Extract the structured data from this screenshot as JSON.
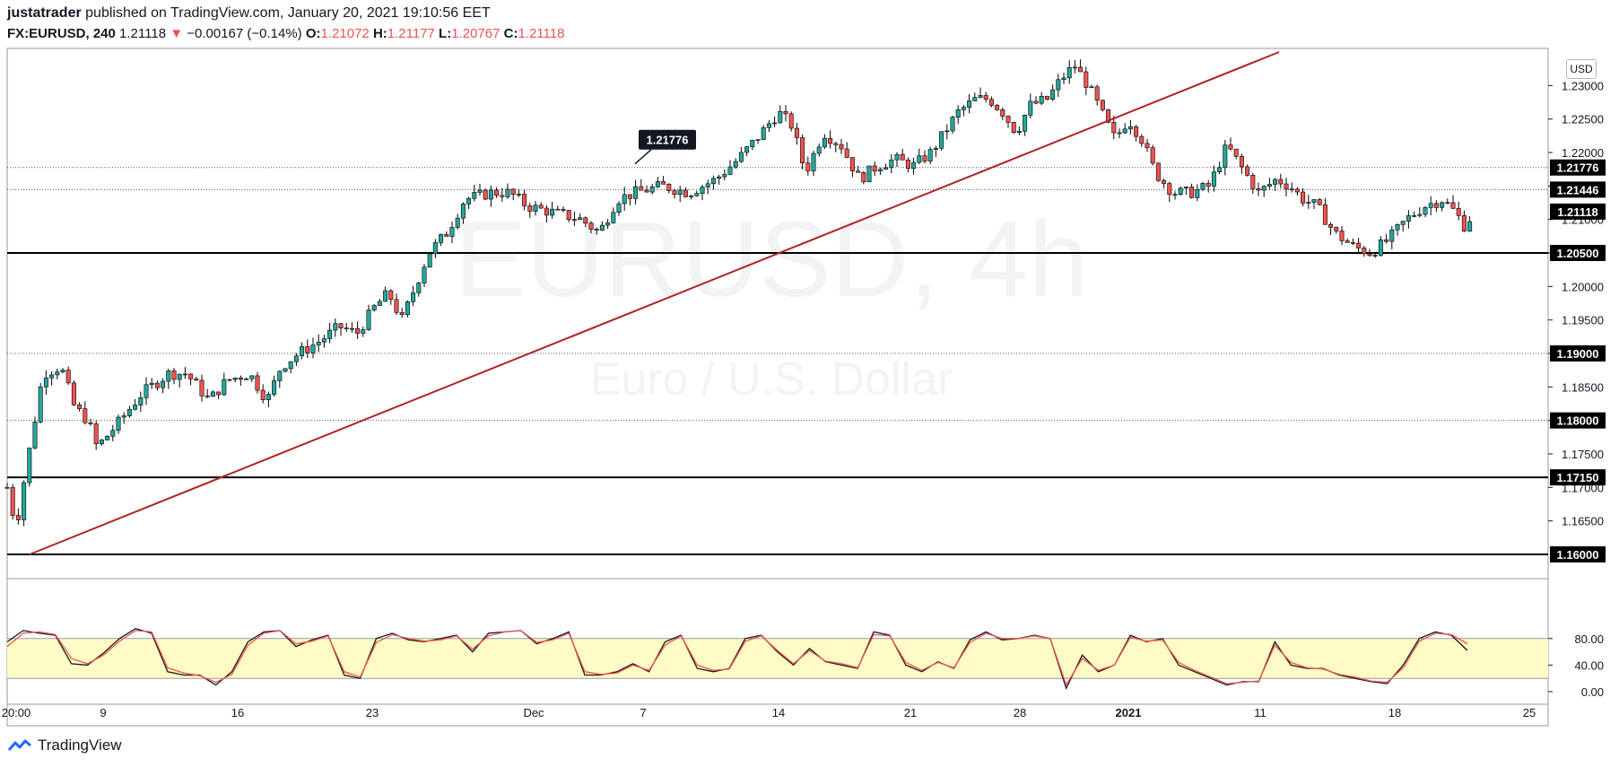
{
  "header": {
    "author": "justatrader",
    "published_text": "published on TradingView.com, January 20, 2021 19:10:56 EET",
    "symbol": "FX:EURUSD, 240",
    "last": "1.21118",
    "change_arrow": "▼",
    "change": "−0.00167 (−0.14%)",
    "o_label": "O:",
    "o_value": "1.21072",
    "h_label": "H:",
    "h_value": "1.21177",
    "l_label": "L:",
    "l_value": "1.20767",
    "c_label": "C:",
    "c_value": "1.21118"
  },
  "currency_badge": "USD",
  "brand": "TradingView",
  "colors": {
    "up": "#26a69a",
    "down": "#ef5350",
    "trendline": "#b22222",
    "stoch_k": "#131722",
    "stoch_d": "#ef5350",
    "stoch_band": "#fffbc4"
  },
  "chart_data": [
    {
      "type": "candlestick",
      "title": "",
      "ylim": [
        1.16,
        1.235
      ],
      "y_ticks": [
        "1.23000",
        "1.22500",
        "1.22000",
        "1.21500",
        "1.21000",
        "1.20500",
        "1.20000",
        "1.19500",
        "1.19000",
        "1.18500",
        "1.18000",
        "1.17500",
        "1.17000",
        "1.16500"
      ],
      "x_tick_labels": [
        "20:00",
        "9",
        "16",
        "23",
        "Dec",
        "7",
        "14",
        "21",
        "28",
        "2021",
        "11",
        "18",
        "25"
      ],
      "price_path": [
        [
          0,
          1.17
        ],
        [
          10,
          1.164
        ],
        [
          20,
          1.172
        ],
        [
          40,
          1.187
        ],
        [
          60,
          1.188
        ],
        [
          75,
          1.182
        ],
        [
          90,
          1.18
        ],
        [
          100,
          1.176
        ],
        [
          120,
          1.179
        ],
        [
          150,
          1.184
        ],
        [
          180,
          1.187
        ],
        [
          200,
          1.187
        ],
        [
          225,
          1.183
        ],
        [
          245,
          1.186
        ],
        [
          270,
          1.187
        ],
        [
          290,
          1.183
        ],
        [
          305,
          1.188
        ],
        [
          325,
          1.19
        ],
        [
          350,
          1.192
        ],
        [
          370,
          1.194
        ],
        [
          390,
          1.193
        ],
        [
          410,
          1.197
        ],
        [
          425,
          1.199
        ],
        [
          440,
          1.195
        ],
        [
          455,
          1.2
        ],
        [
          470,
          1.205
        ],
        [
          490,
          1.208
        ],
        [
          510,
          1.213
        ],
        [
          540,
          1.214
        ],
        [
          560,
          1.214
        ],
        [
          580,
          1.212
        ],
        [
          610,
          1.211
        ],
        [
          640,
          1.21
        ],
        [
          660,
          1.208
        ],
        [
          680,
          1.213
        ],
        [
          700,
          1.214
        ],
        [
          730,
          1.215
        ],
        [
          760,
          1.214
        ],
        [
          790,
          1.216
        ],
        [
          815,
          1.219
        ],
        [
          835,
          1.222
        ],
        [
          860,
          1.226
        ],
        [
          875,
          1.224
        ],
        [
          890,
          1.217
        ],
        [
          910,
          1.223
        ],
        [
          930,
          1.221
        ],
        [
          950,
          1.216
        ],
        [
          970,
          1.218
        ],
        [
          990,
          1.219
        ],
        [
          1010,
          1.218
        ],
        [
          1030,
          1.22
        ],
        [
          1045,
          1.223
        ],
        [
          1060,
          1.226
        ],
        [
          1080,
          1.228
        ],
        [
          1095,
          1.228
        ],
        [
          1110,
          1.226
        ],
        [
          1125,
          1.223
        ],
        [
          1140,
          1.227
        ],
        [
          1160,
          1.228
        ],
        [
          1175,
          1.231
        ],
        [
          1190,
          1.233
        ],
        [
          1205,
          1.23
        ],
        [
          1220,
          1.226
        ],
        [
          1235,
          1.222
        ],
        [
          1250,
          1.225
        ],
        [
          1265,
          1.222
        ],
        [
          1280,
          1.217
        ],
        [
          1300,
          1.214
        ],
        [
          1320,
          1.214
        ],
        [
          1340,
          1.215
        ],
        [
          1360,
          1.221
        ],
        [
          1380,
          1.217
        ],
        [
          1395,
          1.214
        ],
        [
          1415,
          1.216
        ],
        [
          1430,
          1.215
        ],
        [
          1445,
          1.213
        ],
        [
          1460,
          1.212
        ],
        [
          1480,
          1.208
        ],
        [
          1500,
          1.206
        ],
        [
          1520,
          1.205
        ],
        [
          1540,
          1.207
        ],
        [
          1560,
          1.21
        ],
        [
          1580,
          1.212
        ],
        [
          1600,
          1.213
        ],
        [
          1615,
          1.211
        ],
        [
          1625,
          1.209
        ],
        [
          1635,
          1.211
        ]
      ],
      "horizontal_levels": [
        {
          "price": 1.205,
          "label": "1.20500",
          "style": "solid"
        },
        {
          "price": 1.1715,
          "label": "1.17150",
          "style": "solid"
        },
        {
          "price": 1.16,
          "label": "1.16000",
          "style": "solid"
        },
        {
          "price": 1.19,
          "label": "1.19000",
          "style": "dotted"
        },
        {
          "price": 1.18,
          "label": "1.18000",
          "style": "dotted"
        },
        {
          "price": 1.21776,
          "label": "1.21776",
          "style": "dotted"
        },
        {
          "price": 1.21446,
          "label": "1.21446",
          "style": "dotted"
        },
        {
          "price": 1.21118,
          "label": "1.21118",
          "style": "last"
        }
      ],
      "callout": {
        "price": 1.21776,
        "label": "1.21776"
      },
      "trendline": [
        [
          25,
          1.16
        ],
        [
          1418,
          1.235
        ]
      ],
      "watermark": {
        "symbol": "EURUSD, 4h",
        "description": "Euro / U.S. Dollar"
      }
    },
    {
      "type": "line",
      "title": "",
      "ylim": [
        0,
        100
      ],
      "y_ticks": [
        "80.00",
        "40.00",
        "0.00"
      ],
      "band": [
        20,
        80
      ],
      "series": [
        {
          "values": [
            75,
            92,
            88,
            85,
            42,
            40,
            58,
            80,
            95,
            88,
            30,
            25,
            25,
            10,
            30,
            75,
            90,
            92,
            68,
            78,
            85,
            25,
            20,
            80,
            88,
            78,
            75,
            80,
            85,
            60,
            88,
            90,
            92,
            72,
            80,
            90,
            25,
            25,
            30,
            42,
            30,
            75,
            85,
            35,
            30,
            35,
            80,
            85,
            60,
            40,
            65,
            45,
            40,
            35,
            90,
            85,
            40,
            30,
            45,
            35,
            78,
            90,
            78,
            80,
            85,
            80,
            5,
            55,
            30,
            40,
            85,
            75,
            80,
            40,
            30,
            20,
            10,
            15,
            15,
            75,
            40,
            35,
            35,
            25,
            20,
            15,
            12,
            40,
            80,
            90,
            85,
            62
          ]
        },
        {
          "values": [
            68,
            88,
            90,
            86,
            50,
            42,
            55,
            76,
            92,
            90,
            36,
            28,
            24,
            14,
            26,
            70,
            88,
            92,
            72,
            76,
            84,
            30,
            22,
            74,
            86,
            80,
            76,
            78,
            84,
            64,
            84,
            90,
            92,
            74,
            78,
            88,
            30,
            26,
            28,
            40,
            32,
            70,
            84,
            40,
            32,
            34,
            76,
            84,
            62,
            42,
            62,
            46,
            42,
            36,
            86,
            84,
            44,
            32,
            44,
            36,
            74,
            88,
            80,
            80,
            84,
            80,
            10,
            50,
            32,
            40,
            82,
            76,
            78,
            44,
            32,
            22,
            12,
            14,
            16,
            70,
            44,
            36,
            34,
            26,
            22,
            16,
            14,
            36,
            76,
            88,
            86,
            72
          ]
        }
      ]
    }
  ]
}
